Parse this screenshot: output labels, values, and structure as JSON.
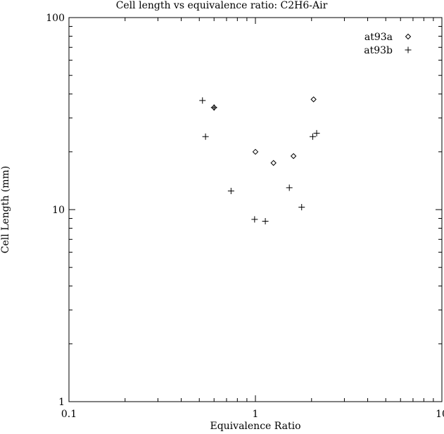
{
  "chart_data": {
    "type": "scatter",
    "title": "Cell length vs equivalence ratio: C2H6-Air",
    "xlabel": "Equivalence Ratio",
    "ylabel": "Cell Length (mm)",
    "xscale": "log",
    "yscale": "log",
    "xlim": [
      0.1,
      10
    ],
    "ylim": [
      1,
      100
    ],
    "xticks": [
      {
        "value": 0.1,
        "label": "0.1"
      },
      {
        "value": 1,
        "label": "1"
      },
      {
        "value": 10,
        "label": "10"
      }
    ],
    "yticks": [
      {
        "value": 1,
        "label": "1"
      },
      {
        "value": 10,
        "label": "10"
      },
      {
        "value": 100,
        "label": "100"
      }
    ],
    "grid": false,
    "legend": "top-right",
    "series": [
      {
        "name": "at93a",
        "marker": "diamond",
        "points": [
          {
            "x": 0.6,
            "y": 34
          },
          {
            "x": 1.0,
            "y": 20
          },
          {
            "x": 1.25,
            "y": 17.5
          },
          {
            "x": 1.6,
            "y": 19
          },
          {
            "x": 2.05,
            "y": 37.5
          }
        ]
      },
      {
        "name": "at93b",
        "marker": "plus",
        "points": [
          {
            "x": 0.52,
            "y": 37
          },
          {
            "x": 0.54,
            "y": 24
          },
          {
            "x": 0.6,
            "y": 34
          },
          {
            "x": 0.74,
            "y": 12.5
          },
          {
            "x": 0.99,
            "y": 8.9
          },
          {
            "x": 1.13,
            "y": 8.7
          },
          {
            "x": 1.52,
            "y": 13
          },
          {
            "x": 1.77,
            "y": 10.3
          },
          {
            "x": 2.03,
            "y": 24
          },
          {
            "x": 2.13,
            "y": 25
          }
        ]
      }
    ]
  }
}
